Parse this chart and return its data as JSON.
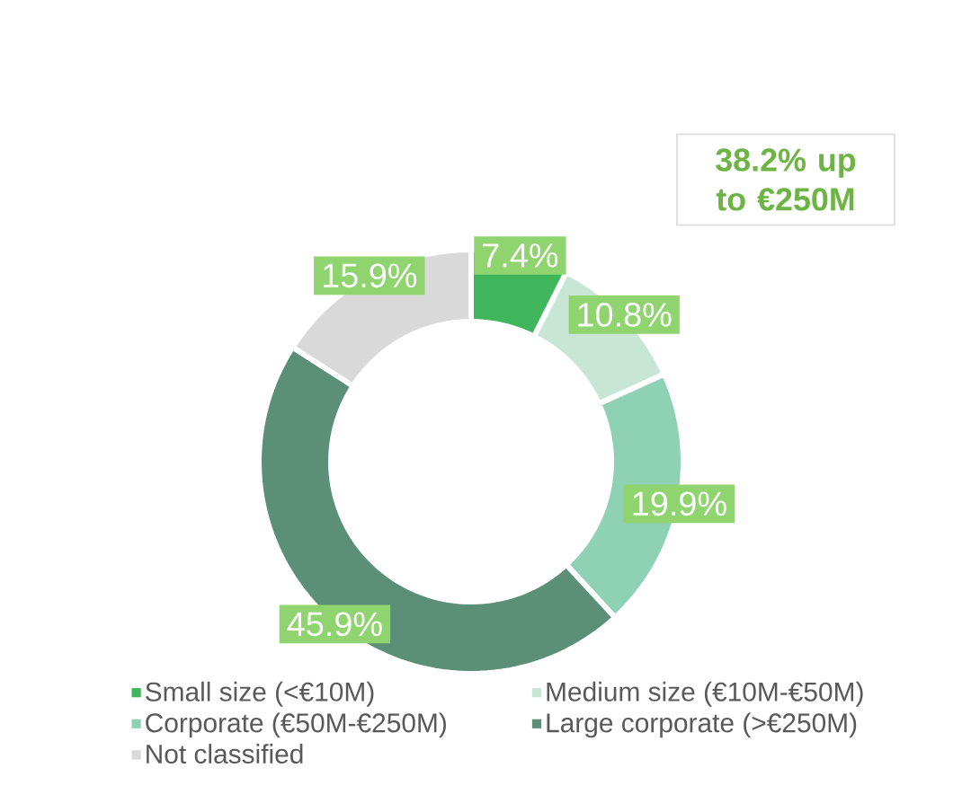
{
  "chart_data": {
    "type": "donut",
    "categories": [
      "Small size (<€10M)",
      "Medium size (€10M-€50M)",
      "Corporate (€50M-€250M)",
      "Large corporate (>€250M)",
      "Not classified"
    ],
    "values": [
      7.4,
      10.8,
      19.9,
      45.9,
      15.9
    ],
    "value_labels": [
      "7.4%",
      "10.8%",
      "19.9%",
      "45.9%",
      "15.9%"
    ],
    "colors": [
      "#3fb55c",
      "#c8e6d5",
      "#8fd1b4",
      "#5b8f78",
      "#d9d9d9"
    ],
    "annotations": [
      "38.2% up to €250M"
    ],
    "legend": "bottom"
  }
}
